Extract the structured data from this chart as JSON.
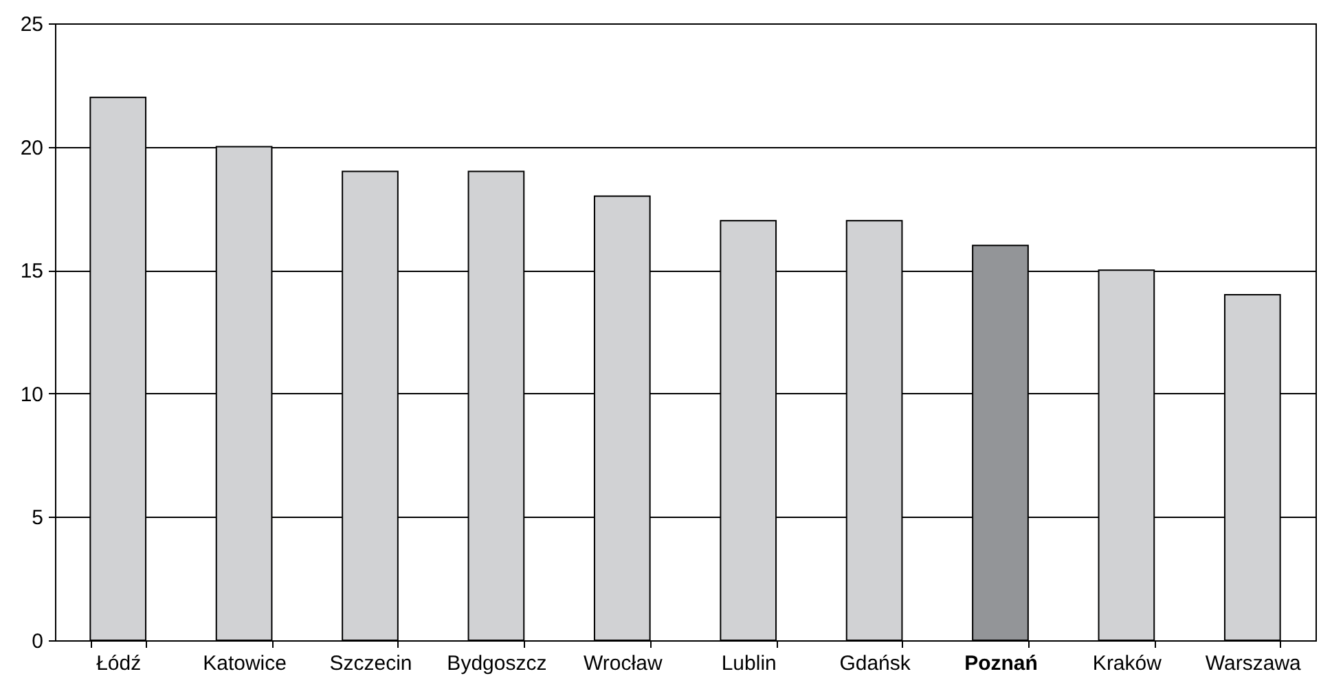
{
  "chart_data": {
    "type": "bar",
    "categories": [
      "Łódź",
      "Katowice",
      "Szczecin",
      "Bydgoszcz",
      "Wrocław",
      "Lublin",
      "Gdańsk",
      "Poznań",
      "Kraków",
      "Warszawa"
    ],
    "values": [
      22,
      20,
      19,
      19,
      18,
      17,
      17,
      16,
      15,
      14
    ],
    "colors": [
      "#d1d2d4",
      "#d1d2d4",
      "#d1d2d4",
      "#d1d2d4",
      "#d1d2d4",
      "#d1d2d4",
      "#d1d2d4",
      "#939598",
      "#d1d2d4",
      "#d1d2d4"
    ],
    "ylim": [
      0,
      25
    ],
    "yticks": [
      0,
      5,
      10,
      15,
      20,
      25
    ],
    "grid": "y"
  }
}
